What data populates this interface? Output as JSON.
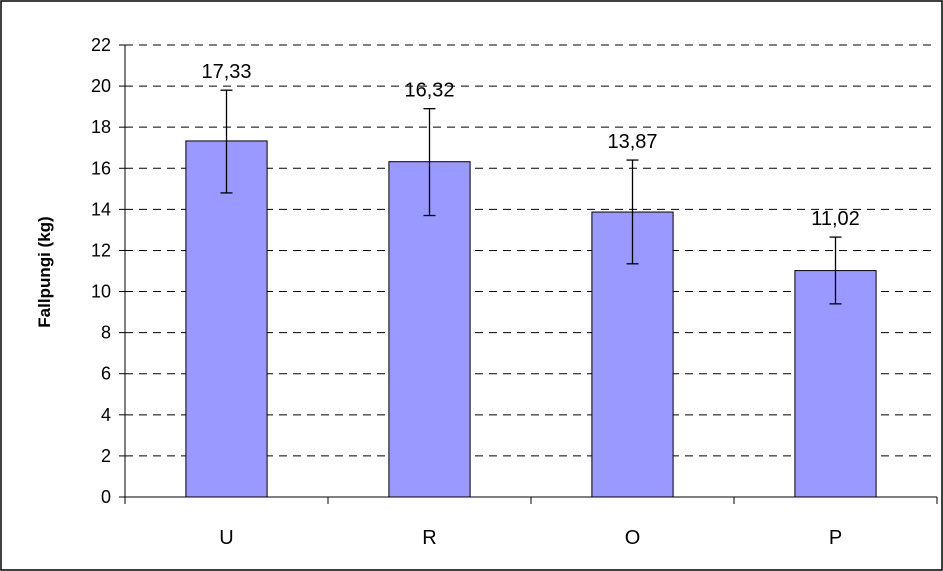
{
  "chart_data": {
    "type": "bar",
    "title": "",
    "xlabel": "",
    "ylabel": "Fallpungi (kg)",
    "categories": [
      "U",
      "R",
      "O",
      "P"
    ],
    "values": [
      17.33,
      16.32,
      13.87,
      11.02
    ],
    "data_labels": [
      "17,33",
      "16,32",
      "13,87",
      "11,02"
    ],
    "error_bars": [
      {
        "low": 14.8,
        "high": 19.8
      },
      {
        "low": 13.7,
        "high": 18.9
      },
      {
        "low": 11.35,
        "high": 16.4
      },
      {
        "low": 9.4,
        "high": 12.65
      }
    ],
    "ylim": [
      0,
      22
    ],
    "yticks": [
      0,
      2,
      4,
      6,
      8,
      10,
      12,
      14,
      16,
      18,
      20,
      22
    ],
    "grid": "horizontal-dashed",
    "legend": "none",
    "colors": {
      "bar_fill": "#9999ff",
      "bar_stroke": "#000000",
      "grid": "#000000",
      "border": "#000000"
    }
  }
}
